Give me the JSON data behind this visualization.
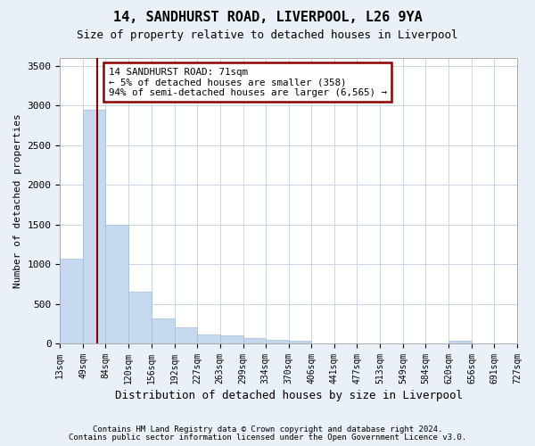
{
  "title1": "14, SANDHURST ROAD, LIVERPOOL, L26 9YA",
  "title2": "Size of property relative to detached houses in Liverpool",
  "xlabel": "Distribution of detached houses by size in Liverpool",
  "ylabel": "Number of detached properties",
  "footnote1": "Contains HM Land Registry data © Crown copyright and database right 2024.",
  "footnote2": "Contains public sector information licensed under the Open Government Licence v3.0.",
  "bar_edges": [
    13,
    49,
    84,
    120,
    156,
    192,
    227,
    263,
    299,
    334,
    370,
    406,
    441,
    477,
    513,
    549,
    584,
    620,
    656,
    691,
    727
  ],
  "bar_heights": [
    1075,
    2950,
    1500,
    650,
    320,
    200,
    115,
    105,
    70,
    50,
    35,
    5,
    0,
    0,
    0,
    0,
    0,
    30,
    0,
    0
  ],
  "bar_color": "#c5d8f0",
  "bar_edge_color": "#a0bcd8",
  "property_size": 71,
  "property_label": "14 SANDHURST ROAD: 71sqm",
  "annotation_line1": "← 5% of detached houses are smaller (358)",
  "annotation_line2": "94% of semi-detached houses are larger (6,565) →",
  "vline_color": "#8b0000",
  "annotation_box_color": "#8b0000",
  "annotation_box_facecolor": "white",
  "ylim": [
    0,
    3600
  ],
  "yticks": [
    0,
    500,
    1000,
    1500,
    2000,
    2500,
    3000,
    3500
  ],
  "bg_color": "#eaf0f8",
  "plot_bg_color": "white",
  "grid_color": "#c8d4e8",
  "first_bar_height": 1075
}
